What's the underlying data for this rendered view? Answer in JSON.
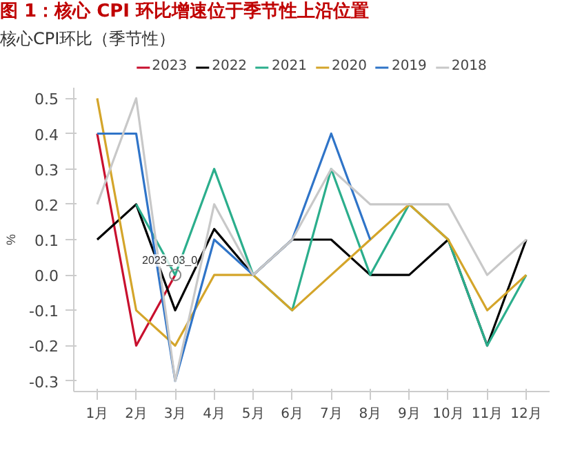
{
  "chart_data": {
    "type": "line",
    "title": "图 1：核心 CPI 环比增速位于季节性上沿位置",
    "subtitle": "核心CPI环比（季节性）",
    "ylabel": "%",
    "categories": [
      "1月",
      "2月",
      "3月",
      "4月",
      "5月",
      "6月",
      "7月",
      "8月",
      "9月",
      "10月",
      "11月",
      "12月"
    ],
    "series": [
      {
        "name": "2023",
        "color": "#c8102e",
        "values": [
          0.4,
          -0.2,
          0.0,
          null,
          null,
          null,
          null,
          null,
          null,
          null,
          null,
          null
        ]
      },
      {
        "name": "2022",
        "color": "#000000",
        "values": [
          0.1,
          0.2,
          -0.1,
          0.13,
          0.0,
          0.1,
          0.1,
          0.0,
          0.0,
          0.1,
          -0.2,
          0.1
        ]
      },
      {
        "name": "2021",
        "color": "#2bae8c",
        "values": [
          null,
          0.2,
          0.0,
          0.3,
          0.0,
          -0.1,
          0.3,
          0.0,
          0.2,
          0.1,
          -0.2,
          0.0
        ]
      },
      {
        "name": "2020",
        "color": "#d4a52a",
        "values": [
          0.5,
          -0.1,
          -0.2,
          0.0,
          0.0,
          -0.1,
          0.0,
          0.1,
          0.2,
          0.1,
          -0.1,
          0.0
        ]
      },
      {
        "name": "2019",
        "color": "#2f74c8",
        "values": [
          0.4,
          0.4,
          -0.3,
          0.1,
          0.0,
          0.1,
          0.4,
          0.1,
          null,
          null,
          null,
          null
        ]
      },
      {
        "name": "2018",
        "color": "#c8c8c8",
        "values": [
          0.2,
          0.5,
          -0.3,
          0.2,
          0.0,
          0.1,
          0.3,
          0.2,
          0.2,
          0.2,
          0.0,
          0.1
        ]
      }
    ],
    "ylim": [
      -0.33,
      0.53
    ],
    "yticks": [
      {
        "value": -0.3,
        "label": "-0.3"
      },
      {
        "value": -0.2,
        "label": "-0.2"
      },
      {
        "value": -0.1,
        "label": "-0.1"
      },
      {
        "value": 0,
        "label": "0.0"
      },
      {
        "value": 0.1,
        "label": "0.1"
      },
      {
        "value": 0.2,
        "label": "0.2"
      },
      {
        "value": 0.3,
        "label": "0.3"
      },
      {
        "value": 0.4,
        "label": "0.4"
      },
      {
        "value": 0.5,
        "label": "0.5"
      }
    ],
    "annotations": [
      {
        "text": "2023_03_0",
        "x": "3月",
        "y": 0.0
      }
    ],
    "legend": "top",
    "grid": false,
    "marker": "none",
    "line_style": "solid"
  }
}
